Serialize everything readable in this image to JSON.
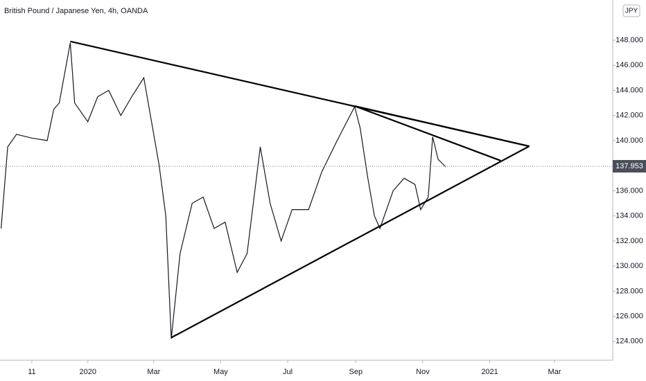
{
  "chart_data": {
    "type": "line",
    "title": "British Pound / Japanese Yen, 4h, OANDA",
    "currency_badge": "JPY",
    "x": [
      "2019-10-14",
      "2019-10-20",
      "2019-10-28",
      "2019-11-11",
      "2019-11-25",
      "2019-12-01",
      "2019-12-06",
      "2019-12-16",
      "2019-12-20",
      "2020-01-01",
      "2020-01-10",
      "2020-01-20",
      "2020-01-31",
      "2020-02-10",
      "2020-02-21",
      "2020-02-28",
      "2020-03-06",
      "2020-03-12",
      "2020-03-17",
      "2020-03-25",
      "2020-04-05",
      "2020-04-15",
      "2020-04-25",
      "2020-05-05",
      "2020-05-16",
      "2020-05-25",
      "2020-06-06",
      "2020-06-15",
      "2020-06-25",
      "2020-07-05",
      "2020-07-20",
      "2020-08-01",
      "2020-08-15",
      "2020-08-31",
      "2020-09-05",
      "2020-09-12",
      "2020-09-18",
      "2020-09-23",
      "2020-10-05",
      "2020-10-15",
      "2020-10-25",
      "2020-10-30",
      "2020-11-06",
      "2020-11-10",
      "2020-11-15",
      "2020-11-22"
    ],
    "series": [
      {
        "color": "#131722",
        "values": [
          133,
          139.5,
          140.5,
          140.2,
          140,
          142.5,
          143,
          147.8,
          143,
          141.5,
          143.5,
          144,
          142,
          143.5,
          145,
          141.5,
          138,
          134,
          124.2,
          131,
          135,
          135.5,
          133,
          133.5,
          129.5,
          131,
          139.5,
          135,
          132,
          134.5,
          134.5,
          137.5,
          140,
          142.7,
          141,
          137,
          134,
          133,
          136,
          137,
          136.5,
          134.5,
          135.5,
          140.3,
          138.5,
          137.9
        ]
      }
    ],
    "trendlines": [
      {
        "x": [
          "2019-12-16",
          "2021-02-06"
        ],
        "y": [
          147.9,
          139.55
        ]
      },
      {
        "x": [
          "2020-08-31",
          "2021-01-11"
        ],
        "y": [
          142.75,
          138.4
        ]
      },
      {
        "x": [
          "2020-08-31",
          "2021-02-06"
        ],
        "y": [
          142.75,
          139.55
        ]
      },
      {
        "x": [
          "2020-03-17",
          "2021-02-06"
        ],
        "y": [
          124.3,
          139.55
        ]
      }
    ],
    "last_price": 137.953,
    "xlim": [
      "2019-10-13",
      "2021-04-23"
    ],
    "xticks": [
      {
        "value": "2019-11-11",
        "label": "11"
      },
      {
        "value": "2020-01-01",
        "label": "2020"
      },
      {
        "value": "2020-03-01",
        "label": "Mar"
      },
      {
        "value": "2020-05-01",
        "label": "May"
      },
      {
        "value": "2020-07-01",
        "label": "Jul"
      },
      {
        "value": "2020-09-01",
        "label": "Sep"
      },
      {
        "value": "2020-11-01",
        "label": "Nov"
      },
      {
        "value": "2021-01-01",
        "label": "2021"
      },
      {
        "value": "2021-03-01",
        "label": "Mar"
      }
    ],
    "ylim": [
      122.5,
      151.2
    ],
    "yticks": [
      {
        "value": 124,
        "label": "124.000"
      },
      {
        "value": 126,
        "label": "126.000"
      },
      {
        "value": 128,
        "label": "128.000"
      },
      {
        "value": 130,
        "label": "130.000"
      },
      {
        "value": 132,
        "label": "132.000"
      },
      {
        "value": 134,
        "label": "134.000"
      },
      {
        "value": 136,
        "label": "136.000"
      },
      {
        "value": 138,
        "label": "138.000"
      },
      {
        "value": 140,
        "label": "140.000"
      },
      {
        "value": 142,
        "label": "142.000"
      },
      {
        "value": 144,
        "label": "144.000"
      },
      {
        "value": 146,
        "label": "146.000"
      },
      {
        "value": 148,
        "label": "148.000"
      }
    ]
  }
}
